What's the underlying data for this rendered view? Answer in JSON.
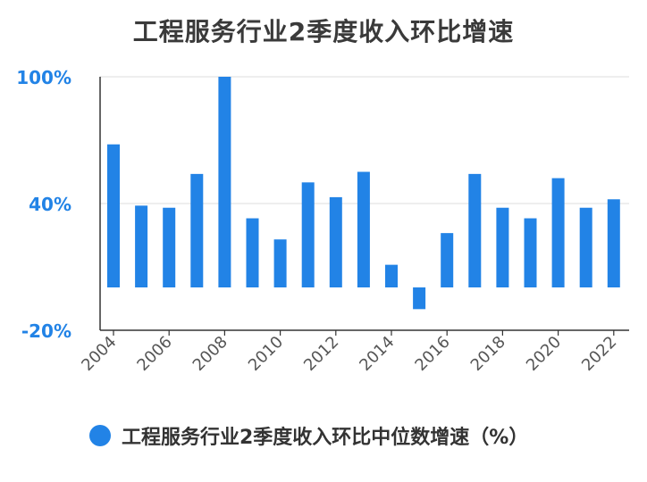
{
  "chart_data": {
    "type": "bar",
    "title": "工程服务行业2季度收入环比增速",
    "categories": [
      "2004",
      "2005",
      "2006",
      "2007",
      "2008",
      "2009",
      "2010",
      "2011",
      "2012",
      "2013",
      "2014",
      "2015",
      "2016",
      "2017",
      "2018",
      "2019",
      "2020",
      "2021",
      "2022"
    ],
    "x_tick_labels": [
      "2004",
      "2006",
      "2008",
      "2010",
      "2012",
      "2014",
      "2016",
      "2018",
      "2020",
      "2022"
    ],
    "y_tick_labels": [
      "100%",
      "40%",
      "-20%"
    ],
    "ylim": [
      -20,
      100
    ],
    "series": [
      {
        "name": "工程服务行业2季度收入环比中位数增速（%）",
        "values": [
          68,
          39,
          38,
          54,
          100,
          33,
          23,
          50,
          43,
          55,
          11,
          -10,
          26,
          54,
          38,
          33,
          52,
          38,
          42
        ]
      }
    ],
    "bar_color": "#2283e6",
    "axis_label_color": "#2283e6",
    "grid": true,
    "legend_position": "bottom"
  }
}
